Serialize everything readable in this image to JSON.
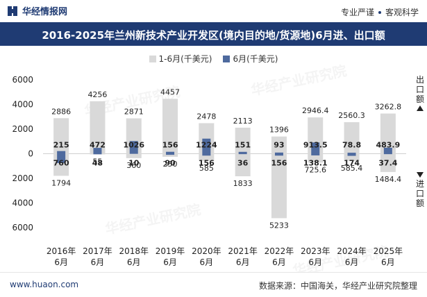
{
  "header": {
    "brand": "华经情报网",
    "badge_left": "专业严谨",
    "badge_right": "客观科学"
  },
  "title": "2016-2025年兰州新技术产业开发区(境内目的地/货源地)6月进、出口额",
  "legend": {
    "cumulative": "1-6月(千美元)",
    "monthly": "6月(千美元)"
  },
  "side_labels": {
    "export": [
      "出",
      "口",
      "额"
    ],
    "import": [
      "进",
      "口",
      "额"
    ]
  },
  "footer": {
    "site": "www.huaon.com",
    "source": "数据来源：中国海关，华经产业研究院整理"
  },
  "watermark": "华经产业研究院",
  "colors": {
    "cumulative": "#d9d9d9",
    "monthly": "#4e6a9e",
    "title_bg": "#1f3b73"
  },
  "chart_data": {
    "type": "bar",
    "categories": [
      "2016年\n6月",
      "2017年\n6月",
      "2018年\n6月",
      "2019年\n6月",
      "2020年\n6月",
      "2021年\n6月",
      "2022年\n6月",
      "2023年\n6月",
      "2024年\n6月",
      "2025年\n6月"
    ],
    "series": [
      {
        "name": "1-6月(千美元)",
        "direction": "export",
        "values": [
          2886,
          4256,
          2871,
          4457,
          2478,
          2113,
          1396,
          2946.4,
          2560.3,
          3262.8
        ],
        "labels": [
          "2886",
          "4256",
          "2871",
          "4457",
          "2478",
          "2113",
          "1396",
          "2946.4",
          "2560.3",
          "3262.8"
        ]
      },
      {
        "name": "1-6月(千美元)",
        "direction": "import",
        "values": [
          1794,
          55,
          360,
          250,
          585,
          1833,
          5233,
          725.6,
          585.4,
          1484.4
        ],
        "labels": [
          "1794",
          "55",
          "360",
          "250",
          "585",
          "1833",
          "5233",
          "725.6",
          "585.4",
          "1484.4"
        ]
      },
      {
        "name": "6月(千美元)",
        "direction": "export",
        "values": [
          215,
          472,
          1026,
          156,
          1224,
          151,
          93,
          913.5,
          78.8,
          483.9
        ],
        "labels": [
          "215",
          "472",
          "1026",
          "156",
          "1224",
          "151",
          "93",
          "913.5",
          "78.8",
          "483.9"
        ]
      },
      {
        "name": "6月(千美元)",
        "direction": "import",
        "values": [
          760,
          48,
          10,
          90,
          156,
          36,
          156,
          138.1,
          174,
          37.4
        ],
        "labels": [
          "760",
          "48",
          "10",
          "90",
          "156",
          "36",
          "156",
          "138.1",
          "174",
          "37.4"
        ]
      }
    ],
    "yticks": [
      "6000",
      "4000",
      "2000",
      "0",
      "2000",
      "4000",
      "6000"
    ],
    "ylim": [
      -6000,
      6000
    ],
    "note": "exports above zero, imports below zero"
  }
}
